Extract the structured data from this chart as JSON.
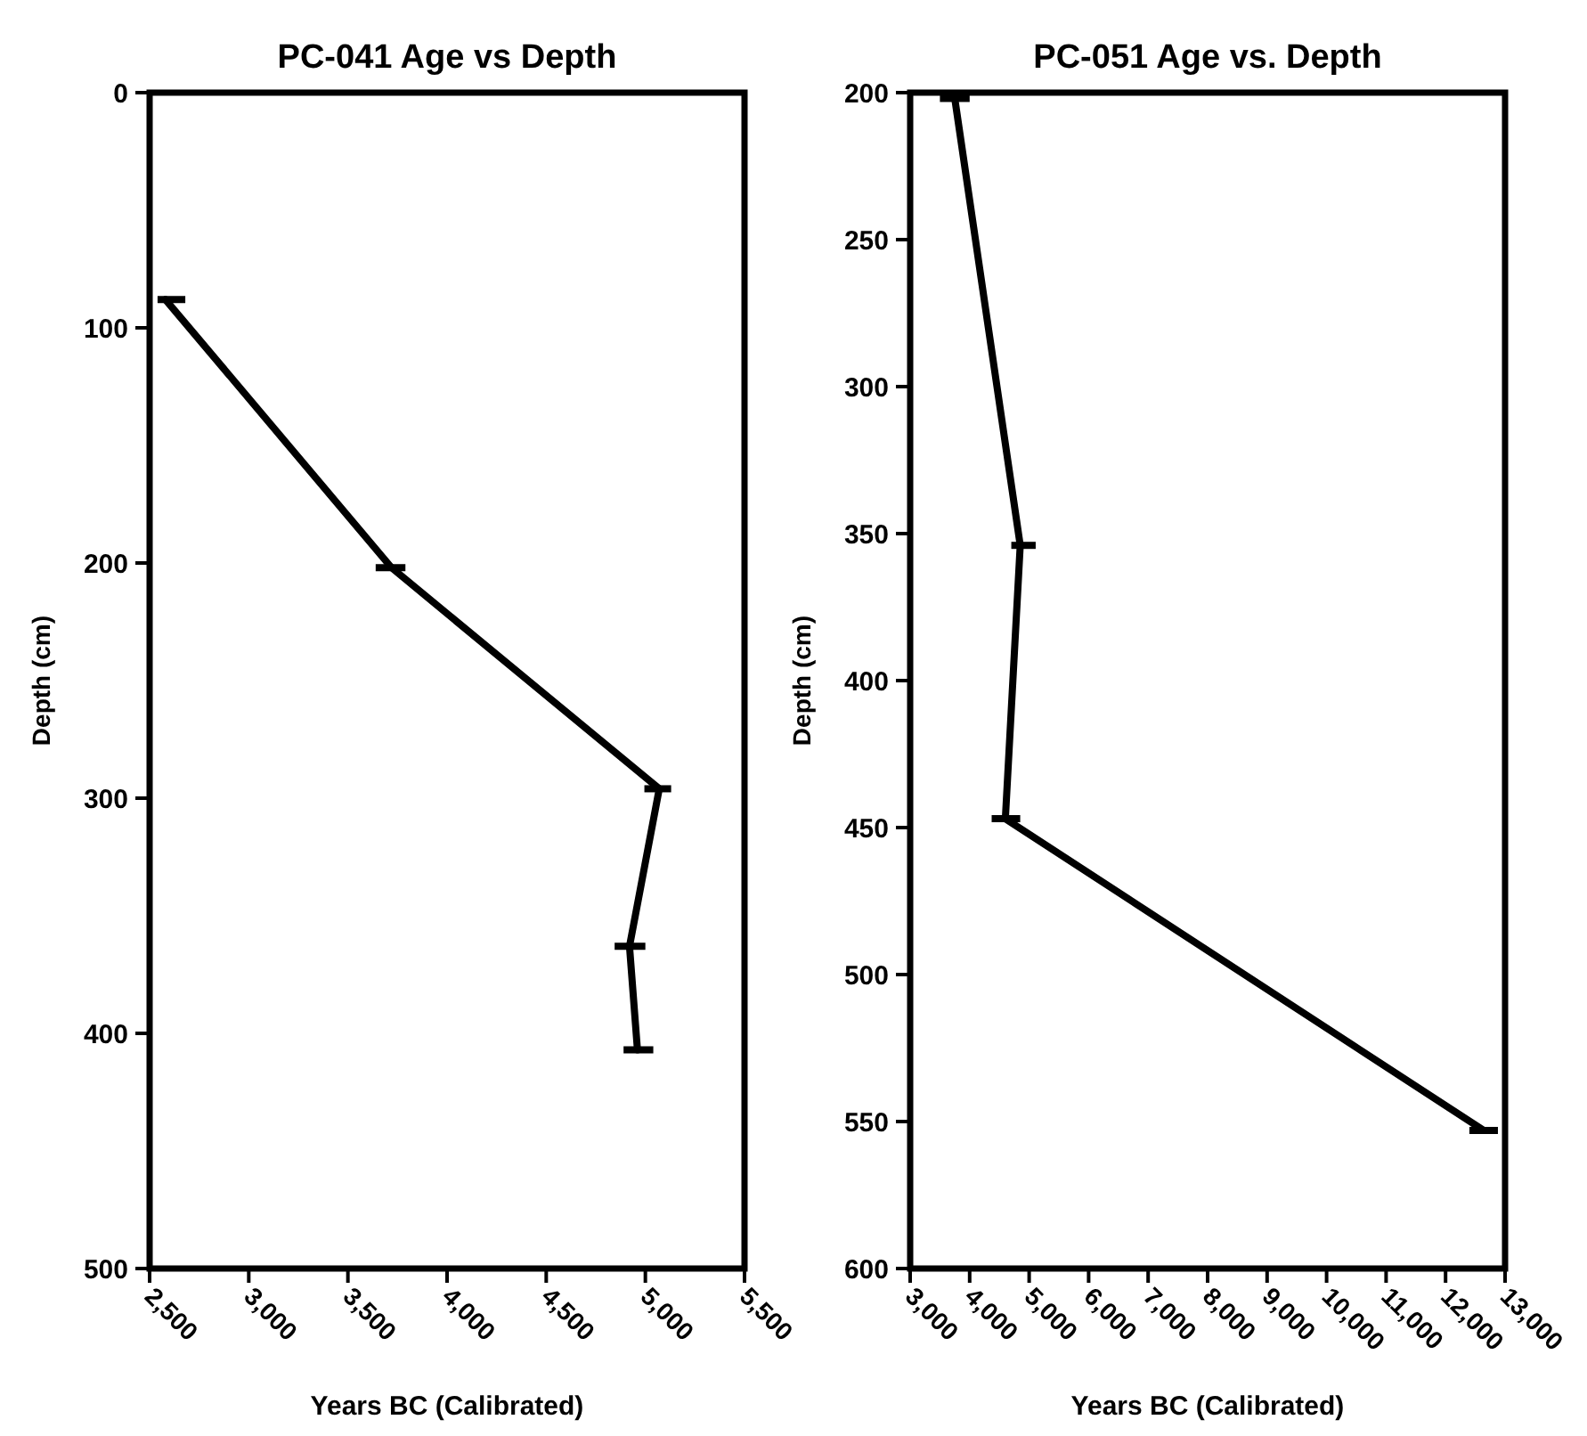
{
  "chart_data": [
    {
      "type": "line",
      "title": "PC-041 Age vs Depth",
      "xlabel": "Years BC (Calibrated)",
      "ylabel": "Depth (cm)",
      "xlim": [
        2500,
        5500
      ],
      "xticks": [
        {
          "value": 2500,
          "label": "2,500"
        },
        {
          "value": 3000,
          "label": "3,000"
        },
        {
          "value": 3500,
          "label": "3,500"
        },
        {
          "value": 4000,
          "label": "4,000"
        },
        {
          "value": 4500,
          "label": "4,500"
        },
        {
          "value": 5000,
          "label": "5,000"
        },
        {
          "value": 5500,
          "label": "5,500"
        }
      ],
      "ylim": [
        500,
        0
      ],
      "yticks": [
        0,
        100,
        200,
        300,
        400,
        500
      ],
      "line_style": "solid",
      "series": [
        {
          "color": "#000000",
          "x": [
            2580,
            3720,
            5070,
            4920,
            4960
          ],
          "values": [
            88,
            202,
            296,
            363,
            407
          ],
          "xerrors": [
            [
              2540,
              2680
            ],
            [
              3640,
              3790
            ],
            [
              4995,
              5130
            ],
            [
              4845,
              5000
            ],
            [
              4890,
              5040
            ]
          ]
        }
      ]
    },
    {
      "type": "line",
      "title": "PC-051 Age vs. Depth",
      "xlabel": "Years BC (Calibrated)",
      "ylabel": "Depth (cm)",
      "xlim": [
        3000,
        13000
      ],
      "xticks": [
        {
          "value": 3000,
          "label": "3,000"
        },
        {
          "value": 4000,
          "label": "4,000"
        },
        {
          "value": 5000,
          "label": "5,000"
        },
        {
          "value": 6000,
          "label": "6,000"
        },
        {
          "value": 7000,
          "label": "7,000"
        },
        {
          "value": 8000,
          "label": "8,000"
        },
        {
          "value": 9000,
          "label": "9,000"
        },
        {
          "value": 10000,
          "label": "10,000"
        },
        {
          "value": 11000,
          "label": "11,000"
        },
        {
          "value": 12000,
          "label": "12,000"
        },
        {
          "value": 13000,
          "label": "13,000"
        }
      ],
      "ylim": [
        600,
        200
      ],
      "yticks": [
        200,
        250,
        300,
        350,
        400,
        450,
        500,
        550,
        600
      ],
      "line_style": "solid",
      "series": [
        {
          "color": "#000000",
          "x": [
            3750,
            4850,
            4600,
            12640
          ],
          "values": [
            202,
            354,
            447,
            553
          ],
          "xerrors": [
            [
              3500,
              4000
            ],
            [
              4700,
              5110
            ],
            [
              4370,
              4850
            ],
            [
              12400,
              12880
            ]
          ]
        }
      ]
    }
  ]
}
